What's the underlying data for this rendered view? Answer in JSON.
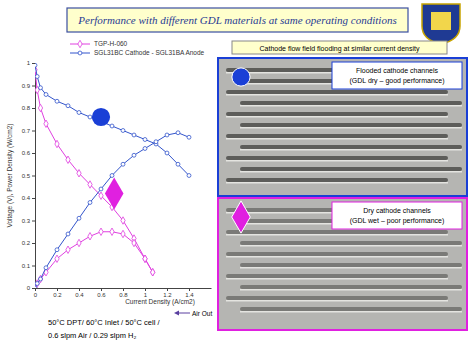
{
  "slide": {
    "title": "Performance with different GDL materials at same operating conditions",
    "photo_header": "Cathode flow field flooding at similar current density",
    "photos": [
      {
        "label": [
          "Flooded cathode channels",
          "(GDL dry – good performance)"
        ],
        "color": "#1a3fd6",
        "marker": "circle"
      },
      {
        "label": [
          "Dry cathode channels",
          "(GDL wet – poor performance)"
        ],
        "color": "#e020e0",
        "marker": "diamond"
      }
    ],
    "conditions": [
      "50°C DPT/ 60°C Inlet / 50°C cell /",
      "0.6 slpm Air / 0.29 slpm H₂"
    ],
    "arrow_label": "Air Out"
  },
  "chart_data": {
    "type": "line",
    "x_label": "Current Density (A/cm2)",
    "y_label": "Voltage (V), Power Density (W/cm2)",
    "xlim": [
      0,
      1.6
    ],
    "xticks": [
      0,
      0.2,
      0.4,
      0.6,
      0.8,
      1,
      1.2,
      1.4
    ],
    "ylim": [
      0,
      1
    ],
    "yticks": [
      0,
      0.1,
      0.2,
      0.3,
      0.4,
      0.5,
      0.6,
      0.7,
      0.8,
      0.9,
      1
    ],
    "grid": false,
    "legend": "top",
    "series": [
      {
        "name": "TGP-H-060",
        "color": "#e040e0",
        "marker": "diamond",
        "x": [
          0,
          0.02,
          0.05,
          0.1,
          0.2,
          0.3,
          0.4,
          0.5,
          0.6,
          0.7,
          0.8,
          0.9,
          1,
          1.07
        ],
        "values": [
          0.97,
          0.88,
          0.8,
          0.73,
          0.64,
          0.57,
          0.51,
          0.46,
          0.41,
          0.36,
          0.3,
          0.22,
          0.13,
          0.07
        ],
        "power": [
          0,
          0.02,
          0.04,
          0.07,
          0.13,
          0.17,
          0.2,
          0.23,
          0.25,
          0.25,
          0.24,
          0.2,
          0.13,
          0.07
        ]
      },
      {
        "name": "SGL31BC Cathode - SGL31BA Anode",
        "color": "#3355cc",
        "marker": "circle",
        "x": [
          0,
          0.02,
          0.05,
          0.1,
          0.2,
          0.3,
          0.4,
          0.5,
          0.6,
          0.7,
          0.8,
          0.9,
          1,
          1.1,
          1.2,
          1.3,
          1.4
        ],
        "values": [
          0.99,
          0.94,
          0.89,
          0.86,
          0.83,
          0.81,
          0.78,
          0.76,
          0.74,
          0.72,
          0.7,
          0.68,
          0.66,
          0.64,
          0.6,
          0.55,
          0.5
        ],
        "power": [
          0,
          0.02,
          0.04,
          0.09,
          0.17,
          0.24,
          0.31,
          0.38,
          0.44,
          0.5,
          0.55,
          0.59,
          0.62,
          0.65,
          0.68,
          0.69,
          0.67
        ]
      }
    ],
    "annotations": [
      {
        "marker": "circle",
        "color": "#1a3fd6",
        "x": 0.6,
        "y": 0.76
      },
      {
        "marker": "diamond",
        "color": "#e020e0",
        "x": 0.72,
        "y": 0.42
      }
    ]
  }
}
